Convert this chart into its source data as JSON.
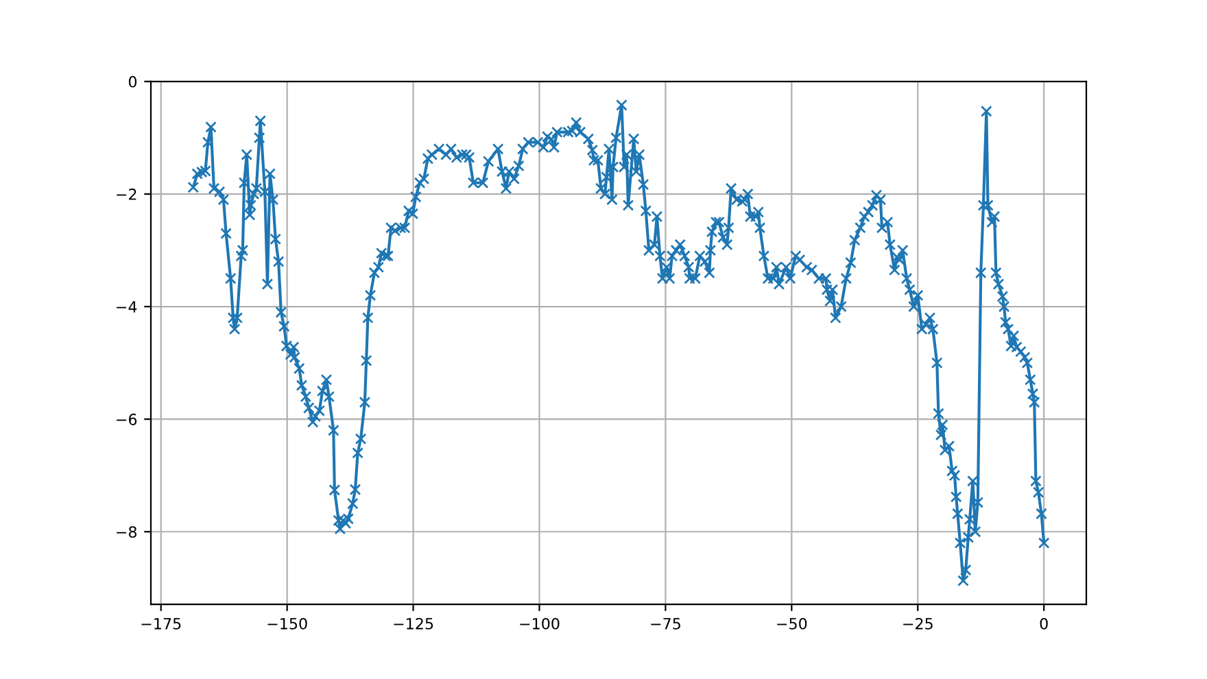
{
  "chart_data": {
    "type": "line",
    "marker": "cross",
    "line_style": "solid",
    "grid": true,
    "xlim": [
      -177.0,
      8.4
    ],
    "ylim": [
      -9.29,
      0.0
    ],
    "xticks": [
      {
        "value": -175,
        "label": "−175"
      },
      {
        "value": -150,
        "label": "−150"
      },
      {
        "value": -125,
        "label": "−125"
      },
      {
        "value": -100,
        "label": "−100"
      },
      {
        "value": -75,
        "label": "−75"
      },
      {
        "value": -50,
        "label": "−50"
      },
      {
        "value": -25,
        "label": "−25"
      },
      0
    ],
    "yticks": [
      {
        "value": -8,
        "label": "−8"
      },
      {
        "value": -6,
        "label": "−6"
      },
      {
        "value": -4,
        "label": "−4"
      },
      {
        "value": -2,
        "label": "−2"
      },
      0
    ],
    "series": [
      {
        "color": "#1f77b4",
        "x": [
          -168.6,
          -167.8,
          -166.9,
          -166.2,
          -165.7,
          -165.1,
          -164.5,
          -163.4,
          -162.6,
          -162.1,
          -161.2,
          -160.7,
          -160.4,
          -159.9,
          -159.1,
          -158.8,
          -158.5,
          -158.0,
          -157.4,
          -157.2,
          -156.6,
          -156.1,
          -155.5,
          -155.3,
          -154.4,
          -153.9,
          -153.4,
          -152.8,
          -152.3,
          -151.7,
          -151.2,
          -150.6,
          -150.1,
          -149.3,
          -148.7,
          -148.5,
          -147.6,
          -147.1,
          -146.3,
          -145.7,
          -144.9,
          -144.4,
          -143.6,
          -143.0,
          -142.2,
          -141.7,
          -140.8,
          -140.6,
          -139.8,
          -139.5,
          -138.9,
          -138.4,
          -137.9,
          -137.0,
          -136.5,
          -136.0,
          -135.4,
          -134.6,
          -134.3,
          -134.0,
          -133.5,
          -132.7,
          -131.9,
          -131.3,
          -130.5,
          -130.0,
          -129.4,
          -128.6,
          -127.5,
          -126.7,
          -125.9,
          -125.1,
          -124.5,
          -123.7,
          -122.9,
          -122.1,
          -121.3,
          -119.9,
          -118.5,
          -117.5,
          -116.4,
          -115.3,
          -114.5,
          -113.9,
          -113.1,
          -111.2,
          -110.1,
          -108.2,
          -107.4,
          -106.6,
          -106.0,
          -105.0,
          -104.1,
          -103.3,
          -102.2,
          -100.3,
          -99.2,
          -98.4,
          -97.6,
          -97.1,
          -96.5,
          -94.3,
          -93.5,
          -92.7,
          -91.9,
          -90.3,
          -89.5,
          -89.2,
          -88.4,
          -87.8,
          -87.0,
          -86.7,
          -86.2,
          -85.6,
          -85.4,
          -84.8,
          -83.7,
          -83.2,
          -82.7,
          -82.4,
          -81.3,
          -80.8,
          -80.2,
          -79.4,
          -78.9,
          -78.3,
          -77.2,
          -76.7,
          -76.1,
          -75.6,
          -74.8,
          -74.2,
          -73.7,
          -72.9,
          -72.1,
          -71.2,
          -70.4,
          -70.2,
          -69.1,
          -68.2,
          -67.2,
          -66.3,
          -66.1,
          -65.8,
          -65.0,
          -64.4,
          -63.6,
          -62.8,
          -62.5,
          -62.0,
          -60.9,
          -59.8,
          -59.3,
          -58.7,
          -58.2,
          -57.1,
          -56.6,
          -56.3,
          -55.5,
          -54.7,
          -53.6,
          -53.0,
          -52.5,
          -51.1,
          -50.3,
          -49.2,
          -48.4,
          -47.0,
          -46.0,
          -44.6,
          -43.2,
          -43.0,
          -42.4,
          -41.9,
          -41.3,
          -40.2,
          -39.2,
          -38.3,
          -37.5,
          -36.4,
          -35.6,
          -34.8,
          -34.0,
          -33.2,
          -32.4,
          -32.1,
          -31.0,
          -30.5,
          -29.6,
          -29.1,
          -28.6,
          -28.0,
          -27.2,
          -26.6,
          -25.8,
          -25.0,
          -24.2,
          -23.4,
          -22.6,
          -22.0,
          -21.2,
          -20.9,
          -20.4,
          -20.1,
          -19.6,
          -18.8,
          -18.2,
          -17.7,
          -17.4,
          -17.1,
          -16.6,
          -16.0,
          -15.5,
          -15.0,
          -14.7,
          -14.1,
          -13.6,
          -13.1,
          -12.5,
          -12.0,
          -11.4,
          -11.1,
          -10.3,
          -9.8,
          -9.5,
          -9.0,
          -8.2,
          -7.9,
          -7.6,
          -7.1,
          -6.5,
          -6.0,
          -5.4,
          -4.6,
          -3.8,
          -3.3,
          -2.7,
          -2.2,
          -1.9,
          -1.6,
          -1.1,
          -0.5,
          0
        ],
        "values": [
          -1.88,
          -1.64,
          -1.61,
          -1.59,
          -1.08,
          -0.81,
          -1.9,
          -1.96,
          -2.1,
          -2.7,
          -3.5,
          -4.2,
          -4.4,
          -4.2,
          -3.1,
          -3.0,
          -1.8,
          -1.3,
          -2.37,
          -2.2,
          -2.0,
          -1.9,
          -1.0,
          -0.7,
          -1.96,
          -3.6,
          -1.64,
          -2.1,
          -2.8,
          -3.2,
          -4.1,
          -4.35,
          -4.7,
          -4.85,
          -4.72,
          -4.9,
          -5.1,
          -5.4,
          -5.6,
          -5.8,
          -6.05,
          -5.95,
          -5.85,
          -5.5,
          -5.3,
          -5.6,
          -6.2,
          -7.26,
          -7.8,
          -7.95,
          -7.8,
          -7.85,
          -7.77,
          -7.5,
          -7.25,
          -6.6,
          -6.35,
          -5.7,
          -4.96,
          -4.2,
          -3.8,
          -3.4,
          -3.3,
          -3.05,
          -3.1,
          -3.1,
          -2.6,
          -2.65,
          -2.6,
          -2.6,
          -2.3,
          -2.35,
          -2.05,
          -1.8,
          -1.73,
          -1.37,
          -1.3,
          -1.2,
          -1.3,
          -1.2,
          -1.35,
          -1.3,
          -1.3,
          -1.35,
          -1.8,
          -1.8,
          -1.42,
          -1.2,
          -1.6,
          -1.9,
          -1.6,
          -1.73,
          -1.5,
          -1.2,
          -1.08,
          -1.08,
          -1.17,
          -0.98,
          -1.03,
          -1.17,
          -0.9,
          -0.9,
          -0.88,
          -0.73,
          -0.9,
          -1.02,
          -1.22,
          -1.4,
          -1.4,
          -1.9,
          -2.0,
          -1.7,
          -1.2,
          -2.1,
          -1.52,
          -1.0,
          -0.42,
          -1.52,
          -1.3,
          -2.2,
          -1.02,
          -1.6,
          -1.3,
          -1.83,
          -2.3,
          -3.0,
          -2.9,
          -2.4,
          -3.1,
          -3.5,
          -3.3,
          -3.5,
          -3.1,
          -3.0,
          -2.9,
          -3.1,
          -3.3,
          -3.5,
          -3.5,
          -3.1,
          -3.2,
          -3.4,
          -3.0,
          -2.67,
          -2.5,
          -2.5,
          -2.77,
          -2.9,
          -2.6,
          -1.9,
          -2.1,
          -2.13,
          -2.1,
          -2.0,
          -2.4,
          -2.4,
          -2.32,
          -2.6,
          -3.1,
          -3.5,
          -3.5,
          -3.3,
          -3.6,
          -3.3,
          -3.5,
          -3.1,
          -3.17,
          -3.3,
          -3.35,
          -3.5,
          -3.5,
          -3.7,
          -3.9,
          -3.7,
          -4.2,
          -4.0,
          -3.5,
          -3.22,
          -2.82,
          -2.6,
          -2.4,
          -2.32,
          -2.2,
          -2.02,
          -2.1,
          -2.6,
          -2.5,
          -2.9,
          -3.35,
          -3.12,
          -3.17,
          -3.0,
          -3.5,
          -3.7,
          -4.0,
          -3.8,
          -4.4,
          -4.32,
          -4.2,
          -4.4,
          -5.0,
          -5.9,
          -6.28,
          -6.1,
          -6.55,
          -6.48,
          -6.92,
          -7.0,
          -7.38,
          -7.68,
          -8.2,
          -8.87,
          -8.68,
          -8.1,
          -7.78,
          -7.1,
          -8.0,
          -7.48,
          -3.4,
          -2.2,
          -0.53,
          -2.2,
          -2.5,
          -2.4,
          -3.4,
          -3.6,
          -3.82,
          -4.0,
          -4.28,
          -4.4,
          -4.7,
          -4.52,
          -4.72,
          -4.8,
          -4.9,
          -5.0,
          -5.3,
          -5.55,
          -5.7,
          -7.1,
          -7.3,
          -7.68,
          -8.2
        ]
      }
    ]
  }
}
